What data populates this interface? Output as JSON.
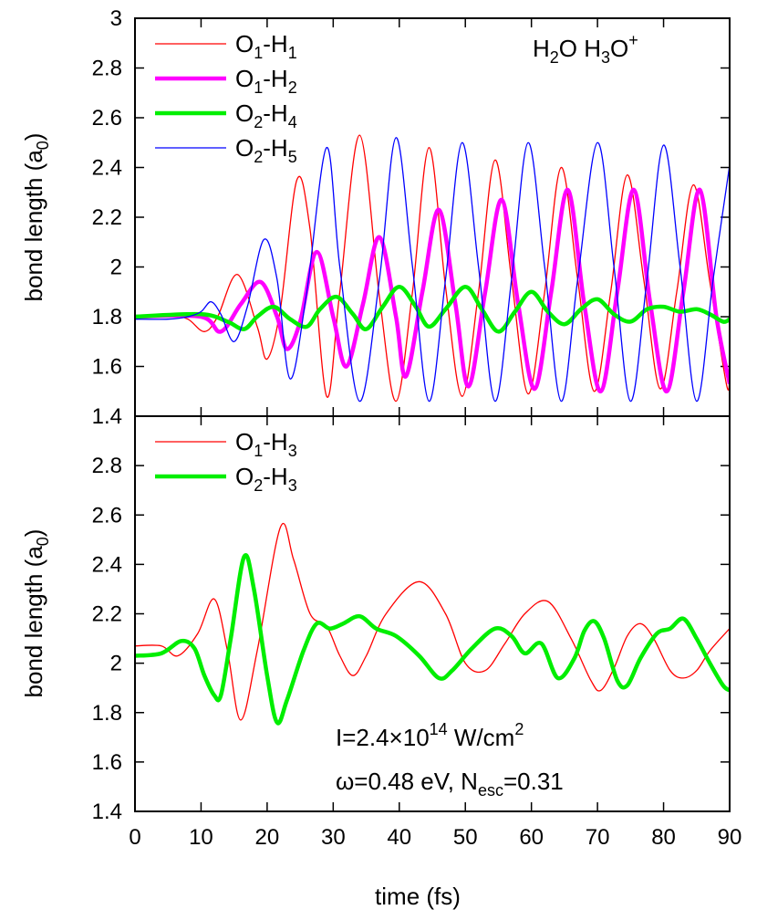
{
  "chart_data": [
    {
      "type": "line",
      "panel": "top",
      "annotation": "H2O H3O+",
      "xlabel": "time  (fs)",
      "ylabel": "bond length  (a0)",
      "xlim": [
        0,
        90
      ],
      "ylim": [
        1.4,
        3.0
      ],
      "xticks": [
        "0",
        "10",
        "20",
        "30",
        "40",
        "50",
        "60",
        "70",
        "80",
        "90"
      ],
      "yticks": [
        "1.4",
        "1.6",
        "1.8",
        "2",
        "2.2",
        "2.4",
        "2.6",
        "2.8",
        "3"
      ],
      "legend_position": "top-left",
      "series": [
        {
          "name": "O1-H1",
          "label_main": "O",
          "label_sub1": "1",
          "label_mid": "-H",
          "label_sub2": "1",
          "color": "#ff0000",
          "width": 1.3,
          "points": [
            [
              0,
              1.8
            ],
            [
              3,
              1.8
            ],
            [
              5,
              1.81
            ],
            [
              8,
              1.79
            ],
            [
              10.5,
              1.74
            ],
            [
              12.5,
              1.8
            ],
            [
              15.5,
              1.97
            ],
            [
              18.5,
              1.76
            ],
            [
              20,
              1.63
            ],
            [
              22,
              1.83
            ],
            [
              24.5,
              2.35
            ],
            [
              26.5,
              2.15
            ],
            [
              29,
              1.48
            ],
            [
              31,
              1.9
            ],
            [
              34,
              2.53
            ],
            [
              37,
              1.88
            ],
            [
              39.5,
              1.46
            ],
            [
              42,
              1.9
            ],
            [
              44.5,
              2.48
            ],
            [
              47,
              1.92
            ],
            [
              49.5,
              1.48
            ],
            [
              52,
              1.9
            ],
            [
              54.5,
              2.43
            ],
            [
              57,
              1.95
            ],
            [
              59.5,
              1.49
            ],
            [
              62,
              1.9
            ],
            [
              64.5,
              2.4
            ],
            [
              67,
              1.95
            ],
            [
              69.5,
              1.5
            ],
            [
              72,
              1.9
            ],
            [
              74.5,
              2.37
            ],
            [
              77,
              1.95
            ],
            [
              79.5,
              1.51
            ],
            [
              82,
              1.9
            ],
            [
              84.5,
              2.33
            ],
            [
              87,
              1.94
            ],
            [
              89.5,
              1.53
            ],
            [
              90,
              1.55
            ]
          ]
        },
        {
          "name": "O1-H2",
          "label_main": "O",
          "label_sub1": "1",
          "label_mid": "-H",
          "label_sub2": "2",
          "color": "#ff00ff",
          "width": 4.5,
          "points": [
            [
              0,
              1.8
            ],
            [
              10,
              1.8
            ],
            [
              13,
              1.74
            ],
            [
              16,
              1.85
            ],
            [
              19,
              1.94
            ],
            [
              21.5,
              1.8
            ],
            [
              23,
              1.67
            ],
            [
              25,
              1.78
            ],
            [
              27.5,
              2.06
            ],
            [
              30,
              1.8
            ],
            [
              32,
              1.6
            ],
            [
              34.5,
              1.85
            ],
            [
              37,
              2.12
            ],
            [
              39.5,
              1.8
            ],
            [
              41,
              1.56
            ],
            [
              43.5,
              1.9
            ],
            [
              46,
              2.23
            ],
            [
              48.5,
              1.85
            ],
            [
              50.5,
              1.52
            ],
            [
              53,
              1.9
            ],
            [
              55.5,
              2.27
            ],
            [
              58,
              1.85
            ],
            [
              60.5,
              1.51
            ],
            [
              63,
              1.9
            ],
            [
              65.5,
              2.31
            ],
            [
              68,
              1.85
            ],
            [
              70.5,
              1.5
            ],
            [
              73,
              1.9
            ],
            [
              75.5,
              2.31
            ],
            [
              78,
              1.85
            ],
            [
              80.5,
              1.5
            ],
            [
              83,
              1.9
            ],
            [
              85.5,
              2.31
            ],
            [
              88,
              1.8
            ],
            [
              90,
              1.53
            ]
          ]
        },
        {
          "name": "O2-H4",
          "label_main": "O",
          "label_sub1": "2",
          "label_mid": "-H",
          "label_sub2": "4",
          "color": "#00ee00",
          "width": 4.5,
          "points": [
            [
              0,
              1.8
            ],
            [
              10,
              1.81
            ],
            [
              14,
              1.78
            ],
            [
              16.5,
              1.75
            ],
            [
              18.5,
              1.8
            ],
            [
              21,
              1.84
            ],
            [
              23.5,
              1.79
            ],
            [
              26,
              1.76
            ],
            [
              28,
              1.83
            ],
            [
              30.5,
              1.88
            ],
            [
              33,
              1.81
            ],
            [
              35,
              1.75
            ],
            [
              37.5,
              1.84
            ],
            [
              40,
              1.92
            ],
            [
              42.5,
              1.84
            ],
            [
              44.5,
              1.76
            ],
            [
              47,
              1.83
            ],
            [
              50,
              1.92
            ],
            [
              52.5,
              1.83
            ],
            [
              55,
              1.74
            ],
            [
              57.5,
              1.82
            ],
            [
              60,
              1.9
            ],
            [
              62.5,
              1.82
            ],
            [
              65,
              1.77
            ],
            [
              67.5,
              1.83
            ],
            [
              70,
              1.87
            ],
            [
              72.5,
              1.81
            ],
            [
              75,
              1.78
            ],
            [
              77.5,
              1.83
            ],
            [
              80,
              1.84
            ],
            [
              82.5,
              1.82
            ],
            [
              85,
              1.83
            ],
            [
              87,
              1.81
            ],
            [
              89,
              1.78
            ],
            [
              90,
              1.79
            ]
          ]
        },
        {
          "name": "O2-H5",
          "label_main": "O",
          "label_sub1": "2",
          "label_mid": "-H",
          "label_sub2": "5",
          "color": "#0000ff",
          "width": 1.3,
          "points": [
            [
              0,
              1.79
            ],
            [
              5,
              1.79
            ],
            [
              8,
              1.8
            ],
            [
              10,
              1.82
            ],
            [
              11.5,
              1.86
            ],
            [
              13,
              1.81
            ],
            [
              15,
              1.7
            ],
            [
              17,
              1.84
            ],
            [
              19.5,
              2.11
            ],
            [
              21.5,
              1.95
            ],
            [
              23.5,
              1.55
            ],
            [
              26,
              1.9
            ],
            [
              29,
              2.48
            ],
            [
              31,
              2.0
            ],
            [
              34,
              1.46
            ],
            [
              37,
              1.95
            ],
            [
              39.5,
              2.52
            ],
            [
              42,
              2.0
            ],
            [
              44.5,
              1.46
            ],
            [
              47,
              1.95
            ],
            [
              49.5,
              2.5
            ],
            [
              52,
              2.0
            ],
            [
              54.5,
              1.46
            ],
            [
              57,
              1.95
            ],
            [
              59.5,
              2.5
            ],
            [
              62,
              2.0
            ],
            [
              64.5,
              1.46
            ],
            [
              67,
              1.95
            ],
            [
              70,
              2.5
            ],
            [
              72.5,
              2.0
            ],
            [
              75,
              1.46
            ],
            [
              77.5,
              1.95
            ],
            [
              80,
              2.49
            ],
            [
              82.5,
              2.0
            ],
            [
              85,
              1.46
            ],
            [
              87.5,
              1.95
            ],
            [
              90,
              2.41
            ]
          ]
        }
      ]
    },
    {
      "type": "line",
      "panel": "bottom",
      "annotation_line1": "I=2.4×10",
      "annotation_line1_sup": "14",
      "annotation_line1_tail": " W/cm",
      "annotation_line1_sup2": "2",
      "annotation_line2": "ω=0.48 eV, N",
      "annotation_line2_sub": "esc",
      "annotation_line2_tail": "=0.31",
      "xlabel": "time  (fs)",
      "ylabel": "bond length  (a0)",
      "xlim": [
        0,
        90
      ],
      "ylim": [
        1.4,
        3.0
      ],
      "xticks": [
        "0",
        "10",
        "20",
        "30",
        "40",
        "50",
        "60",
        "70",
        "80",
        "90"
      ],
      "yticks": [
        "1.4",
        "1.6",
        "1.8",
        "2",
        "2.2",
        "2.4",
        "2.6",
        "2.8"
      ],
      "legend_position": "top-left",
      "series": [
        {
          "name": "O1-H3",
          "label_main": "O",
          "label_sub1": "1",
          "label_mid": "-H",
          "label_sub2": "3",
          "color": "#ff0000",
          "width": 1.3,
          "points": [
            [
              0,
              2.07
            ],
            [
              4,
              2.07
            ],
            [
              6.5,
              2.03
            ],
            [
              9.5,
              2.12
            ],
            [
              12,
              2.26
            ],
            [
              14,
              2.05
            ],
            [
              16,
              1.77
            ],
            [
              18.5,
              2.05
            ],
            [
              22,
              2.55
            ],
            [
              24,
              2.42
            ],
            [
              26.5,
              2.2
            ],
            [
              29,
              2.15
            ],
            [
              31,
              2.03
            ],
            [
              33,
              1.95
            ],
            [
              35,
              2.03
            ],
            [
              38,
              2.2
            ],
            [
              43,
              2.33
            ],
            [
              47,
              2.2
            ],
            [
              50,
              2.0
            ],
            [
              53,
              1.97
            ],
            [
              56,
              2.08
            ],
            [
              59,
              2.2
            ],
            [
              62.5,
              2.25
            ],
            [
              66,
              2.1
            ],
            [
              69,
              1.93
            ],
            [
              70.5,
              1.89
            ],
            [
              72.5,
              1.98
            ],
            [
              74.5,
              2.11
            ],
            [
              76.5,
              2.16
            ],
            [
              78.5,
              2.1
            ],
            [
              81,
              1.97
            ],
            [
              83,
              1.94
            ],
            [
              85,
              1.97
            ],
            [
              87,
              2.05
            ],
            [
              90,
              2.14
            ]
          ]
        },
        {
          "name": "O2-H3",
          "label_main": "O",
          "label_sub1": "2",
          "label_mid": "-H",
          "label_sub2": "3",
          "color": "#00ee00",
          "width": 4.5,
          "points": [
            [
              0,
              2.03
            ],
            [
              4,
              2.04
            ],
            [
              7,
              2.09
            ],
            [
              9,
              2.06
            ],
            [
              10.5,
              1.95
            ],
            [
              12,
              1.87
            ],
            [
              13,
              1.87
            ],
            [
              14.5,
              2.1
            ],
            [
              16.5,
              2.43
            ],
            [
              18,
              2.3
            ],
            [
              20,
              1.95
            ],
            [
              21.5,
              1.76
            ],
            [
              23,
              1.85
            ],
            [
              25.5,
              2.05
            ],
            [
              27.5,
              2.16
            ],
            [
              29.5,
              2.14
            ],
            [
              31.5,
              2.16
            ],
            [
              34,
              2.19
            ],
            [
              36.5,
              2.14
            ],
            [
              39.5,
              2.11
            ],
            [
              43,
              2.03
            ],
            [
              46,
              1.94
            ],
            [
              48,
              1.97
            ],
            [
              51,
              2.06
            ],
            [
              54.5,
              2.14
            ],
            [
              57,
              2.11
            ],
            [
              59,
              2.04
            ],
            [
              61.5,
              2.08
            ],
            [
              64,
              1.94
            ],
            [
              66.5,
              2.02
            ],
            [
              68,
              2.13
            ],
            [
              69.5,
              2.17
            ],
            [
              71,
              2.1
            ],
            [
              73,
              1.93
            ],
            [
              74.5,
              1.91
            ],
            [
              76.5,
              2.02
            ],
            [
              79,
              2.12
            ],
            [
              81,
              2.14
            ],
            [
              83,
              2.18
            ],
            [
              85,
              2.1
            ],
            [
              87,
              2.0
            ],
            [
              89,
              1.91
            ],
            [
              90,
              1.89
            ]
          ]
        }
      ]
    }
  ]
}
